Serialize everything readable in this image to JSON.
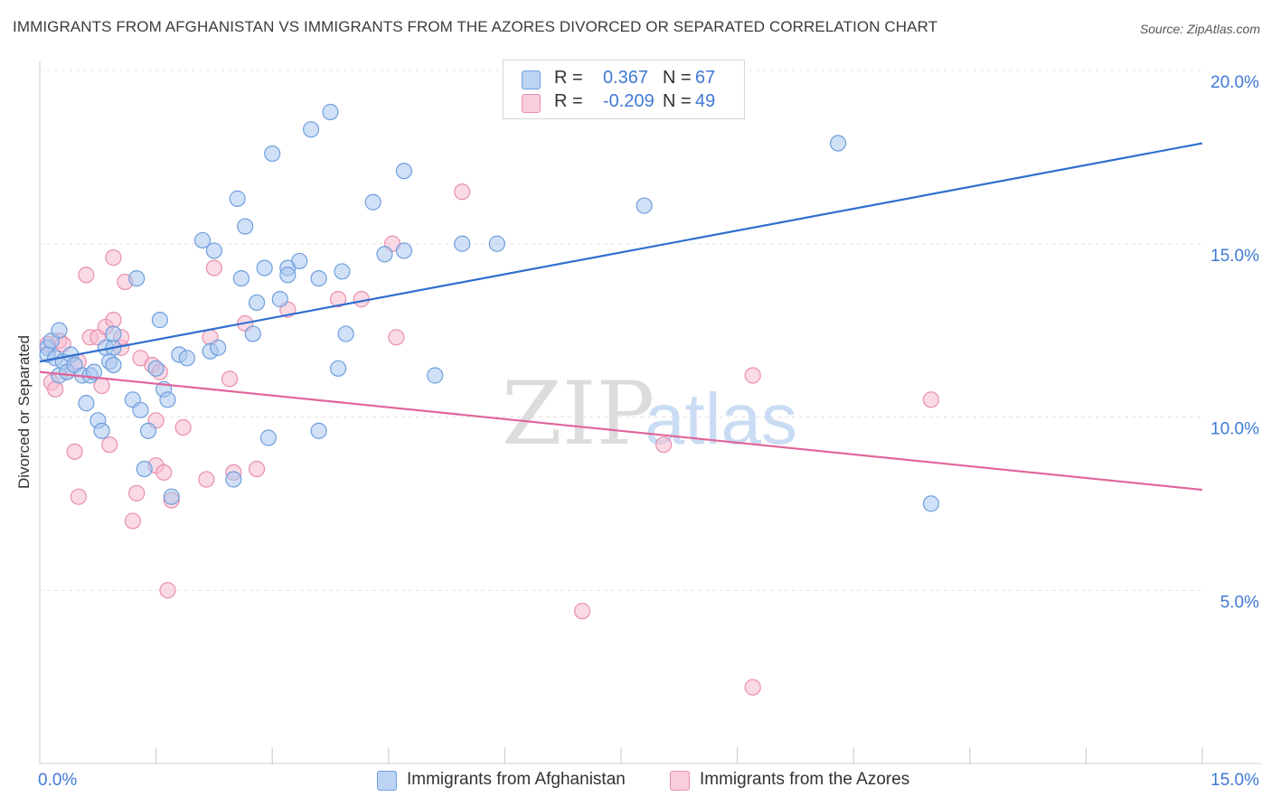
{
  "header": {
    "title": "IMMIGRANTS FROM AFGHANISTAN VS IMMIGRANTS FROM THE AZORES DIVORCED OR SEPARATED CORRELATION CHART",
    "source": "Source: ZipAtlas.com"
  },
  "watermark": {
    "zip": "ZIP",
    "atlas": "atlas"
  },
  "legend": {
    "r_label": "R =",
    "n_label": "N =",
    "rows": [
      {
        "r": "0.367",
        "n": "67"
      },
      {
        "r": "-0.209",
        "n": "49"
      }
    ]
  },
  "colors": {
    "blue_fill": "#a9c6ef",
    "blue_stroke": "#6f9fde",
    "blue_line": "#2f6fce",
    "pink_fill": "#f6bcd0",
    "pink_stroke": "#e98eae",
    "pink_line": "#e0649a",
    "tick_text": "#3f79d4",
    "grid": "#e2e2e2"
  },
  "chart_data": {
    "type": "scatter",
    "title": "IMMIGRANTS FROM AFGHANISTAN VS IMMIGRANTS FROM THE AZORES DIVORCED OR SEPARATED CORRELATION CHART",
    "xlabel": "",
    "ylabel": "Divorced or Separated",
    "xlim": [
      0,
      15
    ],
    "ylim": [
      0,
      20
    ],
    "x_tick_labels": [
      "0.0%",
      "15.0%"
    ],
    "y_ticks": [
      5,
      10,
      15,
      20
    ],
    "y_tick_labels": [
      "5.0%",
      "10.0%",
      "15.0%",
      "20.0%"
    ],
    "grid": true,
    "legend_placement": "top-center",
    "series": [
      {
        "name": "Immigrants from Afghanistan",
        "color": "#a9c6ef",
        "trend": {
          "x": [
            0,
            15
          ],
          "y": [
            11.6,
            17.9
          ]
        },
        "points": [
          [
            0.1,
            12.0
          ],
          [
            0.1,
            11.8
          ],
          [
            0.15,
            12.2
          ],
          [
            0.2,
            11.7
          ],
          [
            0.25,
            12.5
          ],
          [
            0.25,
            11.2
          ],
          [
            0.3,
            11.6
          ],
          [
            0.35,
            11.3
          ],
          [
            0.4,
            11.8
          ],
          [
            0.45,
            11.5
          ],
          [
            0.55,
            11.2
          ],
          [
            0.6,
            10.4
          ],
          [
            0.65,
            11.2
          ],
          [
            0.7,
            11.3
          ],
          [
            0.75,
            9.9
          ],
          [
            0.85,
            12.0
          ],
          [
            0.95,
            12.0
          ],
          [
            0.9,
            11.6
          ],
          [
            0.95,
            11.5
          ],
          [
            0.8,
            9.6
          ],
          [
            0.95,
            12.4
          ],
          [
            1.2,
            10.5
          ],
          [
            1.25,
            14.0
          ],
          [
            1.3,
            10.2
          ],
          [
            1.35,
            8.5
          ],
          [
            1.4,
            9.6
          ],
          [
            1.5,
            11.4
          ],
          [
            1.55,
            12.8
          ],
          [
            1.6,
            10.8
          ],
          [
            1.65,
            10.5
          ],
          [
            1.7,
            7.7
          ],
          [
            1.8,
            11.8
          ],
          [
            1.9,
            11.7
          ],
          [
            2.1,
            15.1
          ],
          [
            2.2,
            11.9
          ],
          [
            2.25,
            14.8
          ],
          [
            2.3,
            12.0
          ],
          [
            2.5,
            8.2
          ],
          [
            2.55,
            16.3
          ],
          [
            2.6,
            14.0
          ],
          [
            2.65,
            15.5
          ],
          [
            2.75,
            12.4
          ],
          [
            2.8,
            13.3
          ],
          [
            2.9,
            14.3
          ],
          [
            2.95,
            9.4
          ],
          [
            3.0,
            17.6
          ],
          [
            3.1,
            13.4
          ],
          [
            3.2,
            14.3
          ],
          [
            3.2,
            14.1
          ],
          [
            3.35,
            14.5
          ],
          [
            3.5,
            18.3
          ],
          [
            3.6,
            14.0
          ],
          [
            3.6,
            9.6
          ],
          [
            3.75,
            18.8
          ],
          [
            3.85,
            11.4
          ],
          [
            3.9,
            14.2
          ],
          [
            3.95,
            12.4
          ],
          [
            4.3,
            16.2
          ],
          [
            4.45,
            14.7
          ],
          [
            4.7,
            14.8
          ],
          [
            4.7,
            17.1
          ],
          [
            5.1,
            11.2
          ],
          [
            5.45,
            15.0
          ],
          [
            5.9,
            15.0
          ],
          [
            7.8,
            16.1
          ],
          [
            10.3,
            17.9
          ],
          [
            11.5,
            7.5
          ]
        ]
      },
      {
        "name": "Immigrants from the Azores",
        "color": "#f6bcd0",
        "trend": {
          "x": [
            0,
            15
          ],
          "y": [
            11.3,
            7.9
          ]
        },
        "points": [
          [
            0.1,
            12.1
          ],
          [
            0.15,
            11.0
          ],
          [
            0.2,
            10.8
          ],
          [
            0.25,
            12.2
          ],
          [
            0.3,
            12.1
          ],
          [
            0.35,
            11.3
          ],
          [
            0.45,
            9.0
          ],
          [
            0.5,
            7.7
          ],
          [
            0.5,
            11.6
          ],
          [
            0.6,
            14.1
          ],
          [
            0.65,
            12.3
          ],
          [
            0.75,
            12.3
          ],
          [
            0.8,
            10.9
          ],
          [
            0.85,
            12.6
          ],
          [
            0.9,
            9.2
          ],
          [
            0.95,
            12.8
          ],
          [
            0.95,
            14.6
          ],
          [
            1.05,
            12.0
          ],
          [
            1.05,
            12.3
          ],
          [
            1.1,
            13.9
          ],
          [
            1.2,
            7.0
          ],
          [
            1.25,
            7.8
          ],
          [
            1.3,
            11.7
          ],
          [
            1.45,
            11.5
          ],
          [
            1.5,
            8.6
          ],
          [
            1.5,
            9.9
          ],
          [
            1.55,
            11.3
          ],
          [
            1.6,
            8.4
          ],
          [
            1.65,
            5.0
          ],
          [
            1.7,
            7.6
          ],
          [
            1.85,
            9.7
          ],
          [
            2.15,
            8.2
          ],
          [
            2.2,
            12.3
          ],
          [
            2.25,
            14.3
          ],
          [
            2.45,
            11.1
          ],
          [
            2.5,
            8.4
          ],
          [
            2.65,
            12.7
          ],
          [
            2.8,
            8.5
          ],
          [
            3.2,
            13.1
          ],
          [
            3.85,
            13.4
          ],
          [
            4.15,
            13.4
          ],
          [
            4.55,
            15.0
          ],
          [
            4.6,
            12.3
          ],
          [
            5.45,
            16.5
          ],
          [
            7.0,
            4.4
          ],
          [
            8.05,
            9.2
          ],
          [
            9.2,
            11.2
          ],
          [
            9.2,
            2.2
          ],
          [
            11.5,
            10.5
          ]
        ]
      }
    ]
  },
  "bottom_legend": [
    "Immigrants from Afghanistan",
    "Immigrants from the Azores"
  ]
}
